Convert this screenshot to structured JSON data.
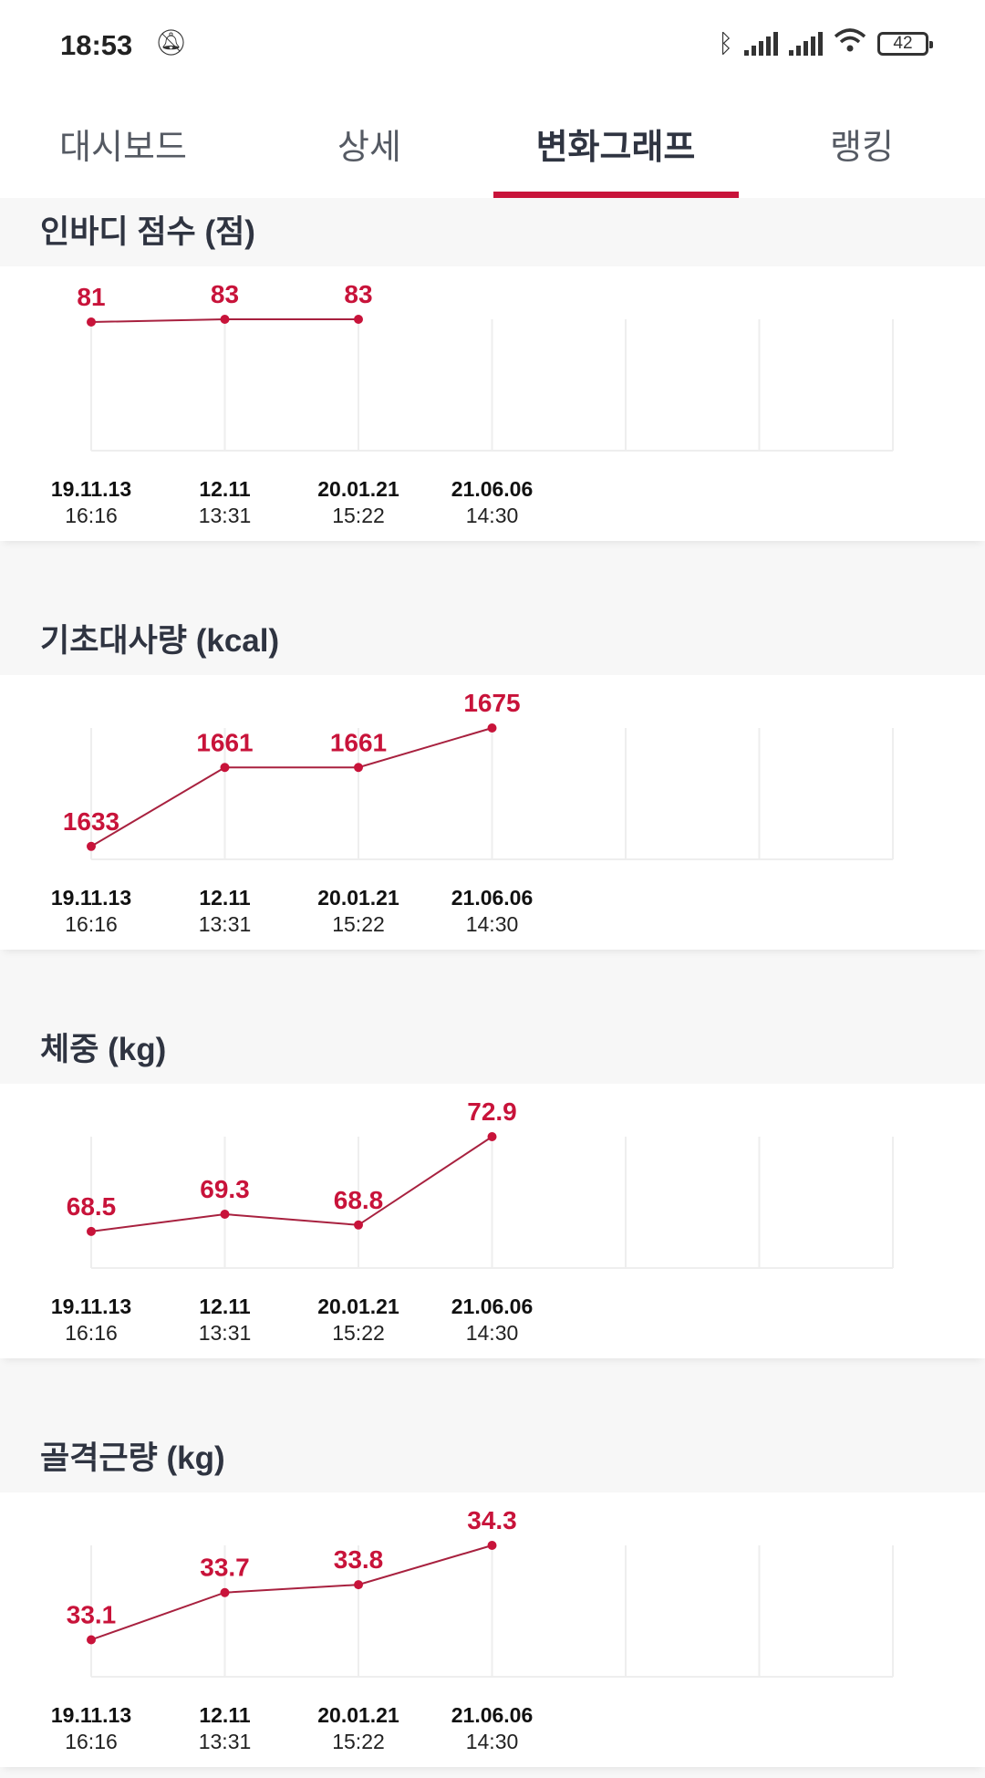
{
  "status_bar": {
    "time": "18:53",
    "battery": "42",
    "icons": [
      "bell-off-icon",
      "bluetooth-icon",
      "signal-icon",
      "signal-icon",
      "wifi-icon",
      "battery-icon"
    ]
  },
  "tabs": [
    {
      "label": "대시보드",
      "active": false
    },
    {
      "label": "상세",
      "active": false
    },
    {
      "label": "변화그래프",
      "active": true
    },
    {
      "label": "랭킹",
      "active": false
    }
  ],
  "colors": {
    "accent": "#c8133a",
    "line": "#a8213f",
    "grid": "#eeeeee",
    "background": "#f7f7f7"
  },
  "chart_data": [
    {
      "type": "line",
      "title": "인바디 점수 (점)",
      "categories": [
        {
          "date": "19.11.13",
          "time": "16:16"
        },
        {
          "date": "12.11",
          "time": "13:31"
        },
        {
          "date": "20.01.21",
          "time": "15:22"
        },
        {
          "date": "21.06.06",
          "time": "14:30"
        }
      ],
      "values": [
        81,
        83,
        83,
        null
      ],
      "labels": [
        "81",
        "83",
        "83",
        ""
      ],
      "ylim": [
        -13,
        83
      ],
      "grid": true
    },
    {
      "type": "line",
      "title": "기초대사량 (kcal)",
      "categories": [
        {
          "date": "19.11.13",
          "time": "16:16"
        },
        {
          "date": "12.11",
          "time": "13:31"
        },
        {
          "date": "20.01.21",
          "time": "15:22"
        },
        {
          "date": "21.06.06",
          "time": "14:30"
        }
      ],
      "values": [
        1633,
        1661,
        1661,
        1675
      ],
      "labels": [
        "1633",
        "1661",
        "1661",
        "1675"
      ],
      "ylim": [
        1628.4,
        1675
      ],
      "grid": true
    },
    {
      "type": "line",
      "title": "체중 (kg)",
      "categories": [
        {
          "date": "19.11.13",
          "time": "16:16"
        },
        {
          "date": "12.11",
          "time": "13:31"
        },
        {
          "date": "20.01.21",
          "time": "15:22"
        },
        {
          "date": "21.06.06",
          "time": "14:30"
        }
      ],
      "values": [
        68.5,
        69.3,
        68.8,
        72.9
      ],
      "labels": [
        "68.5",
        "69.3",
        "68.8",
        "72.9"
      ],
      "ylim": [
        66.8,
        72.9
      ],
      "grid": true
    },
    {
      "type": "line",
      "title": "골격근량 (kg)",
      "categories": [
        {
          "date": "19.11.13",
          "time": "16:16"
        },
        {
          "date": "12.11",
          "time": "13:31"
        },
        {
          "date": "20.01.21",
          "time": "15:22"
        },
        {
          "date": "21.06.06",
          "time": "14:30"
        }
      ],
      "values": [
        33.1,
        33.7,
        33.8,
        34.3
      ],
      "labels": [
        "33.1",
        "33.7",
        "33.8",
        "34.3"
      ],
      "ylim": [
        32.63,
        34.3
      ],
      "grid": true
    }
  ]
}
